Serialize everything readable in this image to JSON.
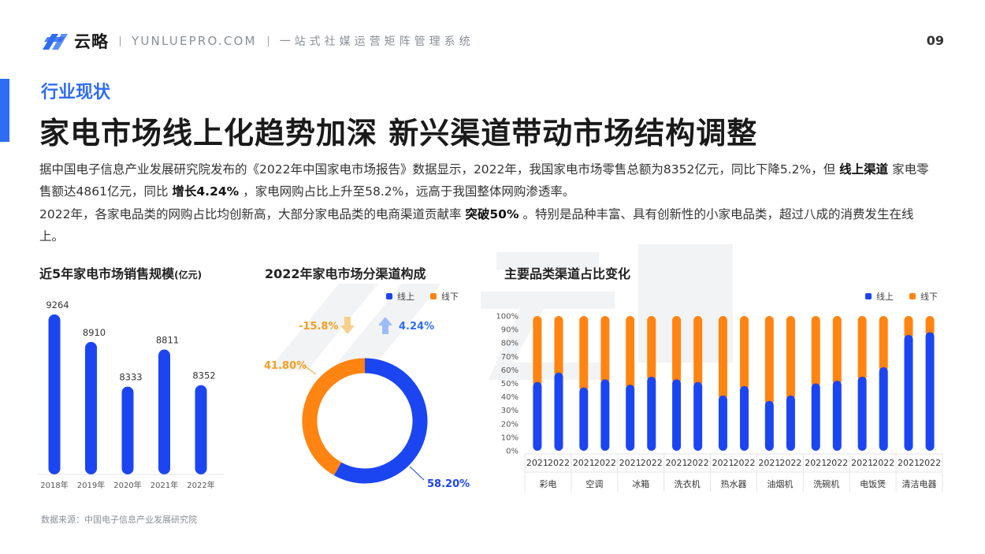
{
  "header": {
    "brand": "云略",
    "domain": "YUNLUEPRO.COM",
    "slogan": "一站式社媒运营矩阵管理系统",
    "page_number": "09",
    "logo_icon": "yunlue-logo-icon"
  },
  "section_label": "行业现状",
  "title": "家电市场线上化趋势加深 新兴渠道带动市场结构调整",
  "paragraph1": {
    "t1": "据中国电子信息产业发展研究院发布的《2022年中国家电市场报告》数据显示，2022年，我国家电市场零售总额为8352亿元，同比下降5.2%，但",
    "b1": "线上渠道",
    "t2": "家电零售额达4861亿元，同比",
    "b2": "增长4.24%",
    "t3": "，家电网购占比上升至58.2%，远高于我国整体网购渗透率。"
  },
  "paragraph2": {
    "t1": "2022年，各家电品类的网购占比均创新高，大部分家电品类的电商渠道贡献率",
    "b1": "突破50%",
    "t2": "。特别是品种丰富、具有创新性的小家电品类，超过八成的消费发生在线上。"
  },
  "colors": {
    "accent": "#2f6cf6",
    "online": "#1c45f2",
    "offline": "#ff8411",
    "light_orange": "#f5b54a",
    "light_blue": "#7fa8f7"
  },
  "source": "数据来源：中国电子信息产业发展研究院",
  "chart_data": [
    {
      "type": "bar",
      "title": "近5年家电市场销售规模",
      "unit": "(亿元)",
      "categories": [
        "2018年",
        "2019年",
        "2020年",
        "2021年",
        "2022年"
      ],
      "values": [
        9264,
        8910,
        8333,
        8811,
        8352
      ]
    },
    {
      "type": "pie",
      "title": "2022年家电市场分渠道构成",
      "legend": [
        "线上",
        "线下"
      ],
      "slices": [
        {
          "name": "线上",
          "value": 58.2,
          "label": "58.20%"
        },
        {
          "name": "线下",
          "value": 41.8,
          "label": "41.80%"
        }
      ],
      "annotations": [
        {
          "text": "-15.8%",
          "icon": "arrow-down-icon"
        },
        {
          "text": "4.24%",
          "icon": "arrow-up-icon"
        }
      ]
    },
    {
      "type": "bar",
      "stacked": true,
      "title": "主要品类渠道占比变化",
      "legend": [
        "线上",
        "线下"
      ],
      "y_ticks": [
        "100%",
        "90%",
        "80%",
        "70%",
        "60%",
        "50%",
        "40%",
        "30%",
        "20%",
        "10%",
        "0%"
      ],
      "ylim": [
        0,
        100
      ],
      "groups": [
        "彩电",
        "空调",
        "冰箱",
        "洗衣机",
        "热水器",
        "油烟机",
        "洗碗机",
        "电饭煲",
        "清洁电器"
      ],
      "years": [
        "2021",
        "2022"
      ],
      "series": [
        {
          "name": "线上",
          "values": [
            51,
            58,
            47,
            53,
            49,
            55,
            53,
            51,
            41,
            48,
            37,
            41,
            50,
            52,
            55,
            62,
            86,
            88
          ]
        },
        {
          "name": "线下",
          "values": [
            49,
            42,
            53,
            47,
            51,
            45,
            47,
            49,
            59,
            52,
            63,
            59,
            50,
            48,
            45,
            38,
            14,
            12
          ]
        }
      ]
    }
  ]
}
